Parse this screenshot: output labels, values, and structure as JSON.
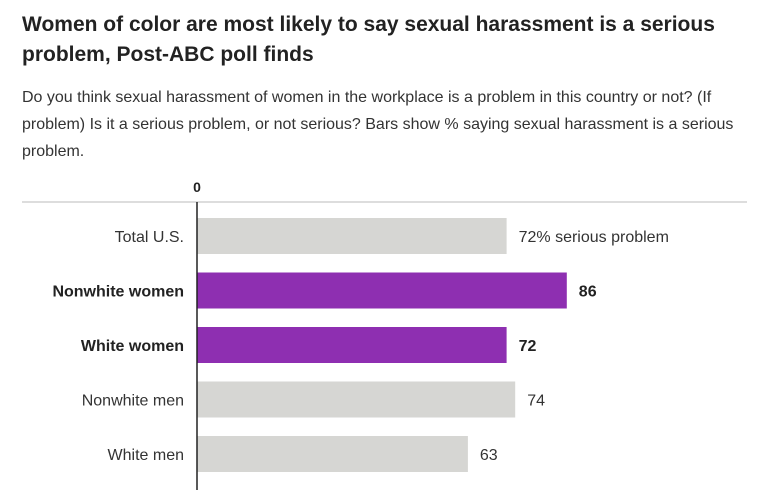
{
  "title": "Women of color are most likely to say sexual harassment is a serious problem, Post-ABC poll finds",
  "subtitle": "Do you think sexual harassment of women in the workplace is a problem in this country or not? (If problem) Is it a serious problem, or not serious? Bars show % saying sexual harassment is a serious problem.",
  "colors": {
    "highlight": "#8e2fb1",
    "neutral": "#d6d6d3",
    "axis": "#222222",
    "label": "#333333"
  },
  "chart_data": {
    "type": "bar",
    "orientation": "horizontal",
    "title": "Women of color are most likely to say sexual harassment is a serious problem, Post-ABC poll finds",
    "subtitle": "Do you think sexual harassment of women in the workplace is a problem in this country or not? (If problem) Is it a serious problem, or not serious? Bars show % saying sexual harassment is a serious problem.",
    "axis_tick_label": "0",
    "xlim": [
      0,
      100
    ],
    "categories": [
      "Total U.S.",
      "Nonwhite women",
      "White women",
      "Nonwhite men",
      "White men"
    ],
    "values": [
      72,
      86,
      72,
      74,
      63
    ],
    "value_labels": [
      "72% serious problem",
      "86",
      "72",
      "74",
      "63"
    ],
    "highlighted": [
      false,
      true,
      true,
      false,
      false
    ],
    "grid": false,
    "legend": "none"
  }
}
